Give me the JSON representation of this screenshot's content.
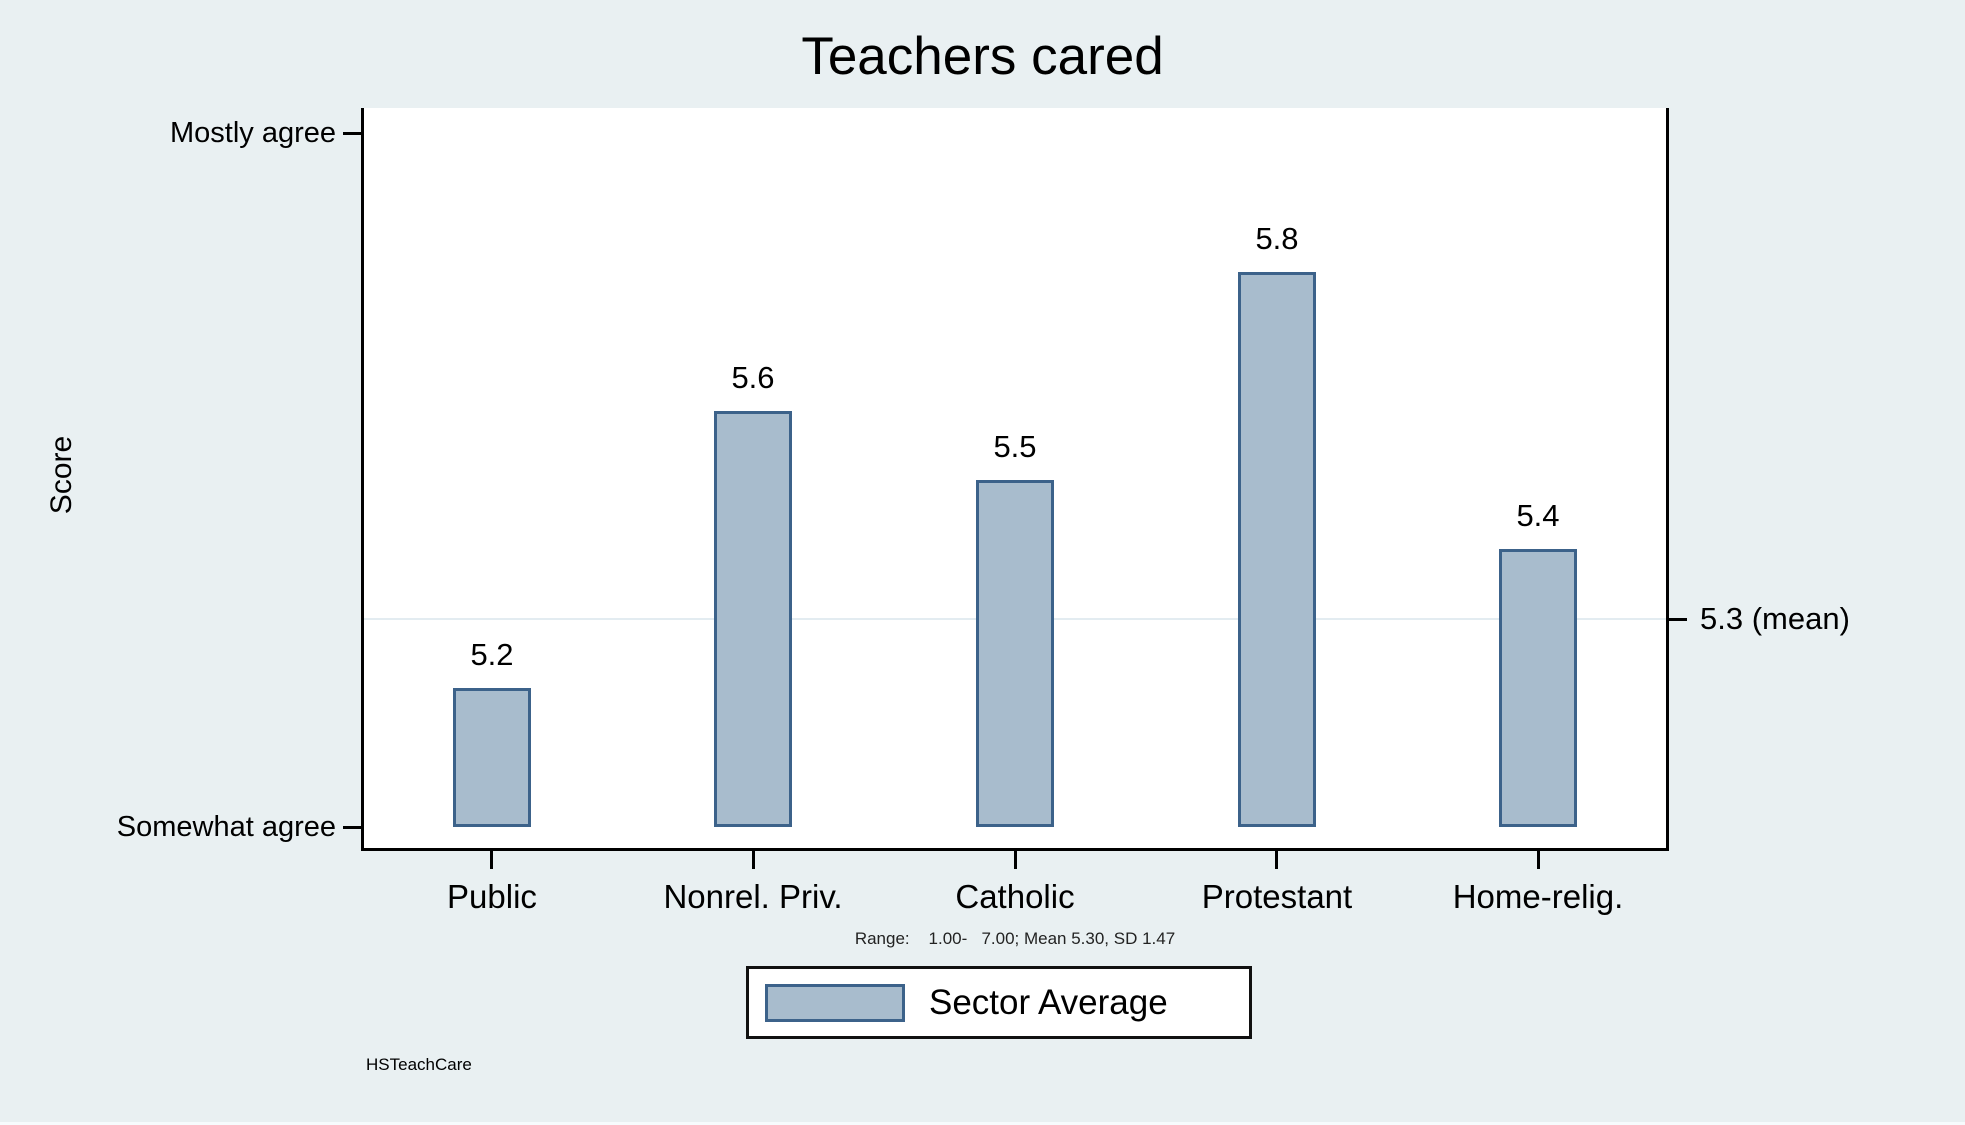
{
  "title": "Teachers cared",
  "y_axis": {
    "label": "Score",
    "ticks": [
      {
        "value": 6,
        "label": "Mostly agree"
      },
      {
        "value": 5,
        "label": "Somewhat agree"
      }
    ]
  },
  "mean_annotation": "5.3 (mean)",
  "note": "Range:    1.00-   7.00; Mean 5.30, SD 1.47",
  "source": "HSTeachCare",
  "legend": {
    "label": "Sector Average"
  },
  "colors": {
    "background": "#e9f0f2",
    "plot_background": "#ffffff",
    "bar_fill": "#a8bccd",
    "bar_border": "#3c628a",
    "axis": "#000000",
    "mean_line": "#e3ecf1",
    "text": "#000000"
  },
  "chart_data": {
    "type": "bar",
    "title": "Teachers cared",
    "categories": [
      "Public",
      "Nonrel. Priv.",
      "Catholic",
      "Protestant",
      "Home-relig."
    ],
    "values": [
      5.2,
      5.6,
      5.5,
      5.8,
      5.4
    ],
    "value_labels": [
      "5.2",
      "5.6",
      "5.5",
      "5.8",
      "5.4"
    ],
    "series_name": "Sector Average",
    "xlabel": "",
    "ylabel": "Score",
    "bar_base": 5.0,
    "ytick_labels": [
      {
        "value": 5,
        "label": "Somewhat agree"
      },
      {
        "value": 6,
        "label": "Mostly agree"
      }
    ],
    "mean": 5.3,
    "mean_label": "5.3 (mean)",
    "sd": 1.47,
    "range_note": "Range: 1.00- 7.00; Mean 5.30, SD 1.47",
    "legend_entries": [
      "Sector Average"
    ],
    "legend_position": "bottom-center",
    "grid": false
  }
}
